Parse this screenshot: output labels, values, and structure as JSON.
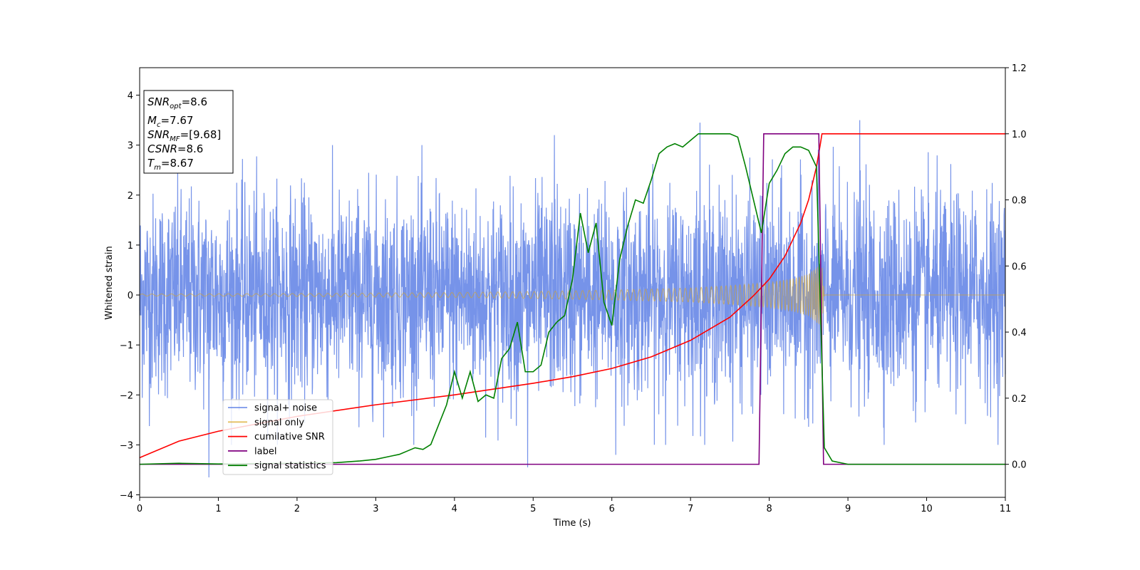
{
  "chart_data": {
    "type": "line",
    "title": "",
    "xlabel": "Time (s)",
    "ylabel": "Whitened strain",
    "xlim": [
      0,
      11
    ],
    "ylim": [
      -4.05,
      4.55
    ],
    "y2lim": [
      -0.1,
      1.2
    ],
    "grid": false,
    "legend_position": "lower-left",
    "x_ticks": [
      "0",
      "1",
      "2",
      "3",
      "4",
      "5",
      "6",
      "7",
      "8",
      "9",
      "10",
      "11"
    ],
    "y_ticks": [
      "−4",
      "−3",
      "−2",
      "−1",
      "0",
      "1",
      "2",
      "3",
      "4"
    ],
    "y2_ticks": [
      "0.0",
      "0.2",
      "0.4",
      "0.6",
      "0.8",
      "1.0",
      "1.2"
    ],
    "annotation": {
      "lines": [
        {
          "base": "SNR",
          "sub": "opt",
          "value": "=8.6"
        },
        {
          "base": "M",
          "sub": "c",
          "value": "=7.67"
        },
        {
          "base": "SNR",
          "sub": "MF",
          "value": "=[9.68]"
        },
        {
          "base": "CSNR",
          "sub": "",
          "value": "=8.6"
        },
        {
          "base": "T",
          "sub": "m",
          "value": "=8.67"
        }
      ]
    },
    "series": [
      {
        "name": "signal+ noise",
        "color": "#4169e1",
        "axis": "left",
        "style": "noise",
        "sigma": 1.0,
        "x_range": [
          0,
          11
        ],
        "extreme_points": [
          [
            0.88,
            -3.65
          ],
          [
            4.93,
            -3.45
          ],
          [
            6.05,
            -3.2
          ],
          [
            7.12,
            3.45
          ],
          [
            9.15,
            3.5
          ],
          [
            5.27,
            3.2
          ]
        ]
      },
      {
        "name": "signal only",
        "color": "#daa520",
        "axis": "left",
        "style": "chirp",
        "envelope": [
          [
            0,
            0.02
          ],
          [
            2,
            0.03
          ],
          [
            4,
            0.05
          ],
          [
            5,
            0.07
          ],
          [
            6,
            0.1
          ],
          [
            7,
            0.14
          ],
          [
            7.5,
            0.19
          ],
          [
            8,
            0.25
          ],
          [
            8.3,
            0.33
          ],
          [
            8.5,
            0.42
          ],
          [
            8.6,
            0.55
          ],
          [
            8.67,
            0.62
          ],
          [
            8.7,
            0
          ]
        ],
        "x_range": [
          0,
          11
        ]
      },
      {
        "name": "cumilative SNR",
        "color": "#ff0000",
        "axis": "right",
        "x": [
          0,
          0.5,
          1,
          2,
          3,
          4,
          5,
          5.5,
          6,
          6.5,
          7,
          7.5,
          7.8,
          8,
          8.2,
          8.4,
          8.5,
          8.6,
          8.65,
          8.67,
          11
        ],
        "values": [
          0.02,
          0.07,
          0.1,
          0.145,
          0.18,
          0.21,
          0.245,
          0.265,
          0.29,
          0.325,
          0.375,
          0.445,
          0.51,
          0.56,
          0.63,
          0.73,
          0.8,
          0.9,
          0.97,
          1.0,
          1.0
        ]
      },
      {
        "name": "label",
        "color": "#800080",
        "axis": "right",
        "x": [
          0,
          7.87,
          7.93,
          8.63,
          8.69,
          11
        ],
        "values": [
          0,
          0,
          1,
          1,
          0,
          0
        ]
      },
      {
        "name": "signal statistics",
        "color": "#008000",
        "axis": "right",
        "x": [
          0,
          0.5,
          1,
          1.5,
          2,
          2.5,
          2.8,
          3,
          3.2,
          3.3,
          3.4,
          3.5,
          3.6,
          3.7,
          3.8,
          3.9,
          4.0,
          4.1,
          4.2,
          4.3,
          4.4,
          4.5,
          4.6,
          4.7,
          4.8,
          4.9,
          5.0,
          5.1,
          5.2,
          5.3,
          5.4,
          5.5,
          5.6,
          5.7,
          5.8,
          5.9,
          6.0,
          6.1,
          6.2,
          6.3,
          6.4,
          6.5,
          6.6,
          6.7,
          6.8,
          6.9,
          7.0,
          7.1,
          7.2,
          7.3,
          7.4,
          7.5,
          7.6,
          7.7,
          7.8,
          7.9,
          8.0,
          8.1,
          8.2,
          8.3,
          8.4,
          8.5,
          8.6,
          8.7,
          8.8,
          9.0,
          11
        ],
        "values": [
          0.0,
          0.003,
          0.001,
          0.002,
          0.003,
          0.005,
          0.01,
          0.015,
          0.025,
          0.03,
          0.04,
          0.05,
          0.045,
          0.06,
          0.12,
          0.18,
          0.28,
          0.2,
          0.28,
          0.19,
          0.21,
          0.2,
          0.32,
          0.35,
          0.43,
          0.28,
          0.28,
          0.3,
          0.4,
          0.43,
          0.45,
          0.56,
          0.76,
          0.64,
          0.73,
          0.49,
          0.42,
          0.62,
          0.72,
          0.8,
          0.79,
          0.86,
          0.94,
          0.96,
          0.97,
          0.96,
          0.98,
          1.0,
          1.0,
          1.0,
          1.0,
          1.0,
          0.99,
          0.9,
          0.8,
          0.7,
          0.85,
          0.89,
          0.94,
          0.96,
          0.96,
          0.95,
          0.9,
          0.05,
          0.01,
          0.0,
          0.0
        ]
      }
    ]
  }
}
